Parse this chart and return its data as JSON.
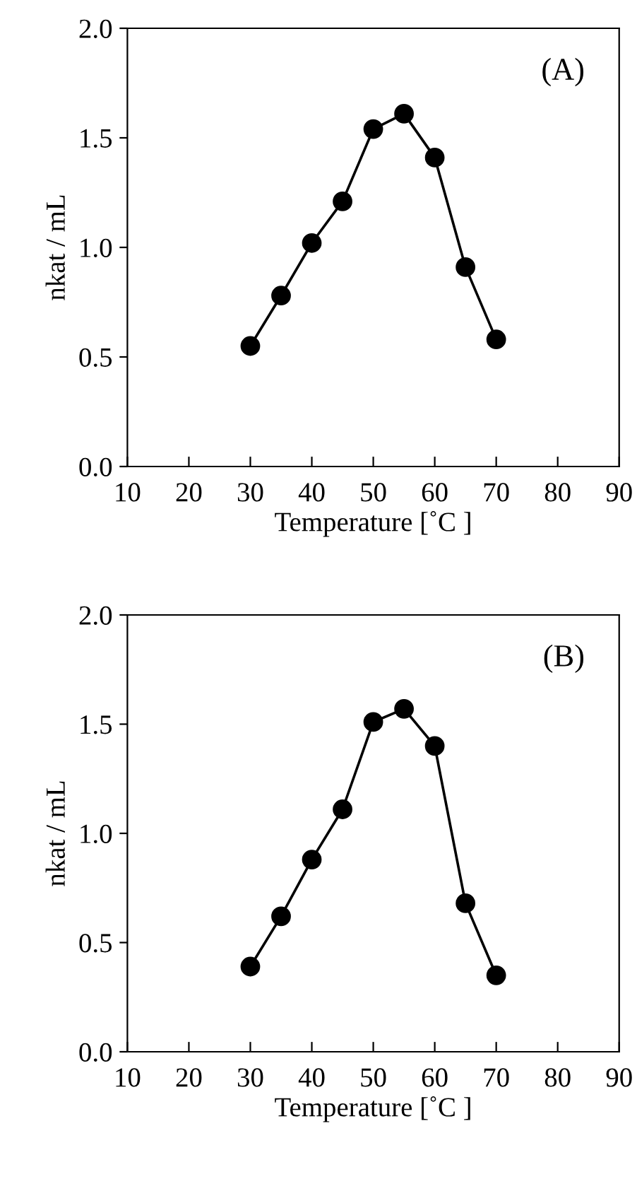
{
  "chart_data": [
    {
      "type": "line",
      "annotations": [
        "(A)"
      ],
      "xlabel": "Temperature [˚C ]",
      "ylabel": "nkat / mL",
      "x": [
        30,
        35,
        40,
        45,
        50,
        55,
        60,
        65,
        70
      ],
      "series": [
        {
          "color": "#000000",
          "values": [
            0.55,
            0.78,
            1.02,
            1.21,
            1.54,
            1.61,
            1.41,
            0.91,
            0.58
          ]
        }
      ],
      "xlim": [
        10,
        90
      ],
      "xticks": [
        10,
        20,
        30,
        40,
        50,
        60,
        70,
        80,
        90
      ],
      "ylim": [
        0,
        2
      ],
      "yticks": [
        {
          "value": 0,
          "label": "0.0"
        },
        {
          "value": 0.5,
          "label": "0.5"
        },
        {
          "value": 1,
          "label": "1.0"
        },
        {
          "value": 1.5,
          "label": "1.5"
        },
        {
          "value": 2,
          "label": "2.0"
        }
      ],
      "marker": "circle",
      "line_style": "solid",
      "grid": false,
      "legend": false
    },
    {
      "type": "line",
      "annotations": [
        "(B)"
      ],
      "xlabel": "Temperature [˚C ]",
      "ylabel": "nkat / mL",
      "x": [
        30,
        35,
        40,
        45,
        50,
        55,
        60,
        65,
        70
      ],
      "series": [
        {
          "color": "#000000",
          "values": [
            0.39,
            0.62,
            0.88,
            1.11,
            1.51,
            1.57,
            1.4,
            0.68,
            0.35
          ]
        }
      ],
      "xlim": [
        10,
        90
      ],
      "xticks": [
        10,
        20,
        30,
        40,
        50,
        60,
        70,
        80,
        90
      ],
      "ylim": [
        0,
        2
      ],
      "yticks": [
        {
          "value": 0,
          "label": "0.0"
        },
        {
          "value": 0.5,
          "label": "0.5"
        },
        {
          "value": 1,
          "label": "1.0"
        },
        {
          "value": 1.5,
          "label": "1.5"
        },
        {
          "value": 2,
          "label": "2.0"
        }
      ],
      "marker": "circle",
      "line_style": "solid",
      "grid": false,
      "legend": false
    }
  ]
}
